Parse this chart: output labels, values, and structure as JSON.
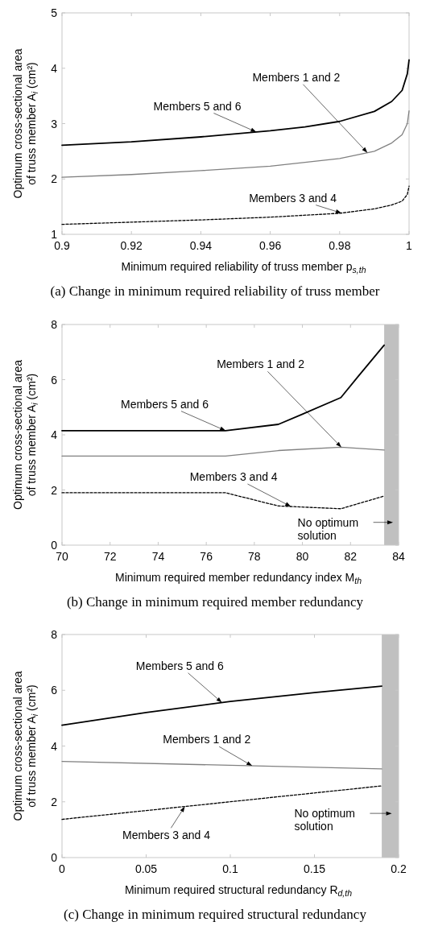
{
  "chart_data": [
    {
      "type": "line",
      "title": "(a) Change in minimum required reliability of truss member",
      "xlabel": "Minimum required reliability of truss member p$_{s,th}$",
      "ylabel": "Optimum cross-sectional area of truss member A$_{i}$ (cm²)",
      "xlim": [
        0.9,
        1
      ],
      "ylim": [
        1,
        5
      ],
      "xticks": [
        0.9,
        0.92,
        0.94,
        0.96,
        0.98,
        1
      ],
      "yticks": [
        1,
        2,
        3,
        4,
        5
      ],
      "grid": false,
      "legend": false,
      "marker": "none",
      "series": [
        {
          "name": "Members 5 and 6",
          "color": "#000000",
          "line_style": "solid",
          "x": [
            0.9,
            0.92,
            0.94,
            0.96,
            0.97,
            0.98,
            0.99,
            0.995,
            0.998,
            0.9995,
            1
          ],
          "values": [
            2.61,
            2.67,
            2.76,
            2.87,
            2.94,
            3.04,
            3.22,
            3.4,
            3.6,
            3.9,
            4.15
          ]
        },
        {
          "name": "Members 1 and 2",
          "color": "#808080",
          "line_style": "solid",
          "x": [
            0.9,
            0.92,
            0.94,
            0.96,
            0.98,
            0.99,
            0.995,
            0.998,
            0.9995,
            1
          ],
          "values": [
            2.03,
            2.08,
            2.15,
            2.23,
            2.37,
            2.5,
            2.65,
            2.8,
            3.0,
            3.23
          ]
        },
        {
          "name": "Members 3 and 4",
          "color": "#000000",
          "line_style": "dashed",
          "x": [
            0.9,
            0.92,
            0.94,
            0.96,
            0.98,
            0.99,
            0.995,
            0.998,
            0.9995,
            1
          ],
          "values": [
            1.18,
            1.22,
            1.26,
            1.31,
            1.38,
            1.46,
            1.53,
            1.6,
            1.72,
            1.87
          ]
        }
      ]
    },
    {
      "type": "line",
      "title": "(b) Change in minimum required member redundancy",
      "xlabel": "Minimum required member redundancy index M$_{th}$",
      "ylabel": "Optimum cross-sectional area of truss member A$_{i}$ (cm²)",
      "xlim": [
        70,
        84
      ],
      "ylim": [
        0,
        8
      ],
      "xticks": [
        70,
        72,
        74,
        76,
        78,
        80,
        82,
        84
      ],
      "yticks": [
        0,
        2,
        4,
        6,
        8
      ],
      "grid": false,
      "legend": false,
      "marker": "none",
      "bands": [
        {
          "axis": "x",
          "from": 83.4,
          "to": 84,
          "label": "No optimum solution",
          "color": "#c0c0c0"
        }
      ],
      "series": [
        {
          "name": "Members 5 and 6",
          "color": "#000000",
          "line_style": "solid",
          "x": [
            70,
            76.8,
            79,
            80,
            81.6,
            82.3,
            83.4
          ],
          "values": [
            4.15,
            4.15,
            4.38,
            4.75,
            5.35,
            6.1,
            7.25
          ]
        },
        {
          "name": "Members 1 and 2",
          "color": "#808080",
          "line_style": "solid",
          "x": [
            70,
            76.8,
            79,
            81.6,
            83.4
          ],
          "values": [
            3.23,
            3.23,
            3.43,
            3.55,
            3.45
          ]
        },
        {
          "name": "Members 3 and 4",
          "color": "#000000",
          "line_style": "dashed",
          "x": [
            70,
            76.8,
            79,
            81.6,
            83.4
          ],
          "values": [
            1.9,
            1.9,
            1.42,
            1.32,
            1.78
          ]
        }
      ]
    },
    {
      "type": "line",
      "title": "(c) Change in minimum required structural redundancy",
      "xlabel": "Minimum required structural redundancy R$_{d,th}$",
      "ylabel": "Optimum cross-sectional area of truss member A$_{i}$ (cm²)",
      "xlim": [
        0,
        0.2
      ],
      "ylim": [
        0,
        8
      ],
      "xticks": [
        0,
        0.05,
        0.1,
        0.15,
        0.2
      ],
      "yticks": [
        0,
        2,
        4,
        6,
        8
      ],
      "grid": false,
      "legend": false,
      "marker": "none",
      "bands": [
        {
          "axis": "x",
          "from": 0.19,
          "to": 0.2,
          "label": "No optimum solution",
          "color": "#c0c0c0"
        }
      ],
      "series": [
        {
          "name": "Members 5 and 6",
          "color": "#000000",
          "line_style": "solid",
          "x": [
            0,
            0.05,
            0.1,
            0.15,
            0.19
          ],
          "values": [
            4.75,
            5.2,
            5.6,
            5.92,
            6.15
          ]
        },
        {
          "name": "Members 1 and 2",
          "color": "#808080",
          "line_style": "solid",
          "x": [
            0,
            0.19
          ],
          "values": [
            3.45,
            3.18
          ]
        },
        {
          "name": "Members 3 and 4",
          "color": "#000000",
          "line_style": "dashed",
          "x": [
            0,
            0.19
          ],
          "values": [
            1.37,
            2.57
          ]
        }
      ]
    }
  ]
}
